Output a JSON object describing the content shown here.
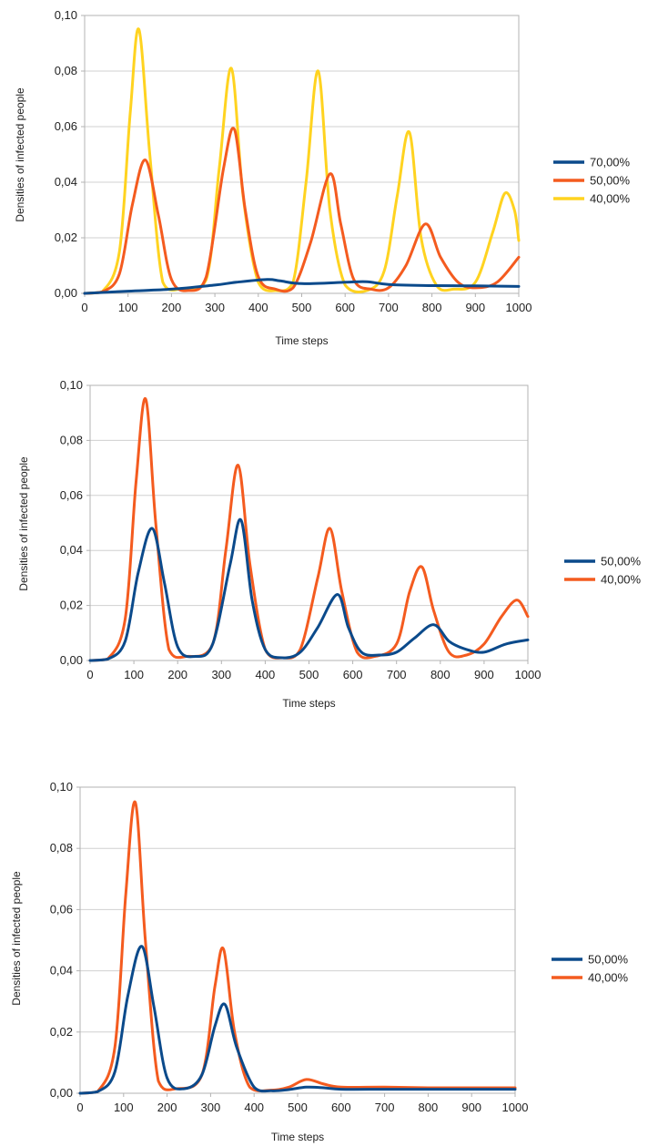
{
  "chart_data": [
    {
      "type": "line",
      "xlabel": "Time steps",
      "ylabel": "Densities of infected people",
      "xlim": [
        0,
        1000
      ],
      "ylim": [
        0,
        0.1
      ],
      "xticks": [
        "0",
        "100",
        "200",
        "300",
        "400",
        "500",
        "600",
        "700",
        "800",
        "900",
        "1000"
      ],
      "yticks": [
        "0,00",
        "0,02",
        "0,04",
        "0,06",
        "0,08",
        "0,10"
      ],
      "grid": true,
      "legend": "right",
      "series": [
        {
          "name": "70,00%",
          "color": "#0b4a8b",
          "x": [
            0,
            100,
            200,
            300,
            350,
            420,
            450,
            500,
            600,
            650,
            700,
            800,
            900,
            1000
          ],
          "y": [
            0,
            0.0008,
            0.0015,
            0.003,
            0.004,
            0.005,
            0.0045,
            0.0035,
            0.004,
            0.0042,
            0.0032,
            0.0028,
            0.0027,
            0.0025
          ]
        },
        {
          "name": "50,00%",
          "color": "#f45b1f",
          "x": [
            0,
            40,
            80,
            110,
            140,
            170,
            200,
            240,
            280,
            320,
            345,
            370,
            400,
            440,
            480,
            520,
            565,
            590,
            620,
            660,
            700,
            740,
            785,
            820,
            860,
            900,
            950,
            1000
          ],
          "y": [
            0,
            0.0005,
            0.007,
            0.032,
            0.048,
            0.028,
            0.005,
            0.001,
            0.006,
            0.045,
            0.059,
            0.03,
            0.006,
            0.0015,
            0.002,
            0.018,
            0.043,
            0.025,
            0.005,
            0.0015,
            0.002,
            0.01,
            0.025,
            0.013,
            0.004,
            0.002,
            0.004,
            0.013
          ]
        },
        {
          "name": "40,00%",
          "color": "#ffd320",
          "x": [
            0,
            40,
            80,
            105,
            125,
            150,
            180,
            220,
            280,
            310,
            338,
            365,
            400,
            440,
            480,
            510,
            538,
            565,
            600,
            650,
            690,
            720,
            748,
            775,
            810,
            850,
            900,
            940,
            968,
            990,
            1000
          ],
          "y": [
            0,
            0.0005,
            0.015,
            0.065,
            0.095,
            0.05,
            0.004,
            0.0015,
            0.005,
            0.045,
            0.081,
            0.035,
            0.004,
            0.001,
            0.004,
            0.04,
            0.08,
            0.03,
            0.003,
            0.001,
            0.008,
            0.035,
            0.058,
            0.02,
            0.003,
            0.0015,
            0.004,
            0.022,
            0.036,
            0.03,
            0.019
          ]
        }
      ]
    },
    {
      "type": "line",
      "xlabel": "Time steps",
      "ylabel": "Densities of infected people",
      "xlim": [
        0,
        1000
      ],
      "ylim": [
        0,
        0.1
      ],
      "xticks": [
        "0",
        "100",
        "200",
        "300",
        "400",
        "500",
        "600",
        "700",
        "800",
        "900",
        "1000"
      ],
      "yticks": [
        "0,00",
        "0,02",
        "0,04",
        "0,06",
        "0,08",
        "0,10"
      ],
      "grid": true,
      "legend": "right",
      "series": [
        {
          "name": "50,00%",
          "color": "#0b4a8b",
          "x": [
            0,
            40,
            80,
            110,
            142,
            170,
            200,
            240,
            280,
            320,
            345,
            370,
            400,
            440,
            480,
            520,
            565,
            590,
            620,
            660,
            700,
            740,
            785,
            820,
            860,
            900,
            950,
            1000
          ],
          "y": [
            0,
            0.0005,
            0.007,
            0.032,
            0.048,
            0.028,
            0.005,
            0.0015,
            0.006,
            0.035,
            0.051,
            0.022,
            0.004,
            0.001,
            0.003,
            0.012,
            0.024,
            0.012,
            0.003,
            0.002,
            0.003,
            0.008,
            0.013,
            0.007,
            0.004,
            0.003,
            0.006,
            0.0075
          ]
        },
        {
          "name": "40,00%",
          "color": "#f45b1f",
          "x": [
            0,
            40,
            80,
            105,
            127,
            150,
            180,
            220,
            280,
            310,
            338,
            365,
            400,
            440,
            480,
            520,
            548,
            575,
            610,
            650,
            700,
            730,
            758,
            785,
            820,
            860,
            900,
            940,
            975,
            1000
          ],
          "y": [
            0,
            0.0005,
            0.015,
            0.065,
            0.095,
            0.05,
            0.004,
            0.0015,
            0.006,
            0.04,
            0.071,
            0.035,
            0.004,
            0.001,
            0.004,
            0.03,
            0.048,
            0.025,
            0.003,
            0.0015,
            0.006,
            0.025,
            0.034,
            0.018,
            0.003,
            0.002,
            0.006,
            0.016,
            0.022,
            0.016
          ]
        }
      ]
    },
    {
      "type": "line",
      "xlabel": "Time steps",
      "ylabel": "Densities of infected people",
      "xlim": [
        0,
        1000
      ],
      "ylim": [
        0,
        0.1
      ],
      "xticks": [
        "0",
        "100",
        "200",
        "300",
        "400",
        "500",
        "600",
        "700",
        "800",
        "900",
        "1000"
      ],
      "yticks": [
        "0,00",
        "0,02",
        "0,04",
        "0,06",
        "0,08",
        "0,10"
      ],
      "grid": true,
      "legend": "right",
      "series": [
        {
          "name": "50,00%",
          "color": "#0b4a8b",
          "x": [
            0,
            40,
            80,
            110,
            142,
            170,
            200,
            240,
            280,
            310,
            333,
            360,
            400,
            440,
            480,
            520,
            560,
            600,
            700,
            800,
            900,
            1000
          ],
          "y": [
            0,
            0.0005,
            0.007,
            0.032,
            0.048,
            0.028,
            0.005,
            0.0015,
            0.006,
            0.022,
            0.029,
            0.015,
            0.002,
            0.0008,
            0.0012,
            0.002,
            0.0018,
            0.0013,
            0.0013,
            0.0013,
            0.0013,
            0.0013
          ]
        },
        {
          "name": "40,00%",
          "color": "#f45b1f",
          "x": [
            0,
            40,
            80,
            105,
            127,
            150,
            180,
            220,
            280,
            310,
            330,
            355,
            390,
            440,
            480,
            520,
            560,
            600,
            700,
            800,
            900,
            1000
          ],
          "y": [
            0,
            0.0005,
            0.015,
            0.065,
            0.095,
            0.05,
            0.004,
            0.0015,
            0.006,
            0.035,
            0.047,
            0.02,
            0.002,
            0.001,
            0.002,
            0.0045,
            0.003,
            0.002,
            0.002,
            0.0018,
            0.0018,
            0.0018
          ]
        }
      ]
    }
  ]
}
